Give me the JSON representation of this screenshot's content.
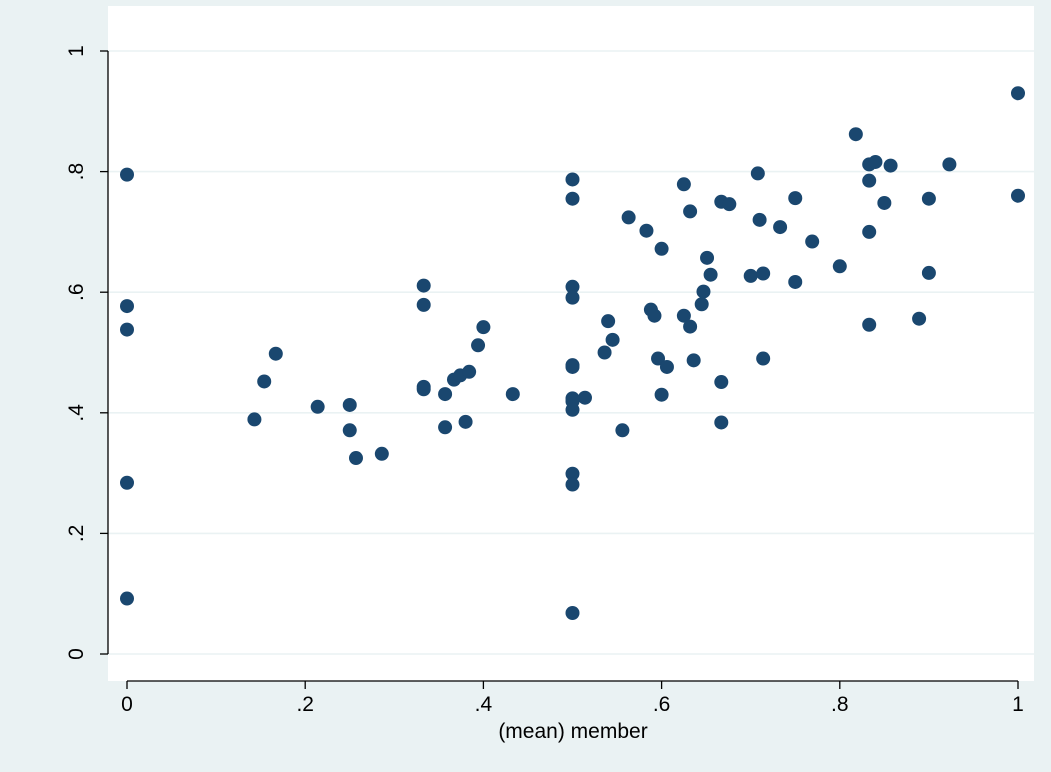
{
  "chart_data": {
    "type": "scatter",
    "title": "",
    "xlabel": "(mean) member",
    "ylabel": "",
    "xlim": [
      0,
      1
    ],
    "ylim": [
      0,
      1
    ],
    "x_ticks": [
      {
        "value": 0,
        "label": "0"
      },
      {
        "value": 0.2,
        "label": ".2"
      },
      {
        "value": 0.4,
        "label": ".4"
      },
      {
        "value": 0.6,
        "label": ".6"
      },
      {
        "value": 0.8,
        "label": ".8"
      },
      {
        "value": 1,
        "label": "1"
      }
    ],
    "y_ticks": [
      {
        "value": 0,
        "label": "0"
      },
      {
        "value": 0.2,
        "label": ".2"
      },
      {
        "value": 0.4,
        "label": ".4"
      },
      {
        "value": 0.6,
        "label": ".6"
      },
      {
        "value": 0.8,
        "label": ".8"
      },
      {
        "value": 1,
        "label": "1"
      }
    ],
    "grid": "horizontal",
    "marker_color": "#1a476f",
    "gridline_color": "#eaf2f3",
    "points": [
      [
        0,
        0.795
      ],
      [
        0,
        0.577
      ],
      [
        0,
        0.538
      ],
      [
        0,
        0.284
      ],
      [
        0,
        0.092
      ],
      [
        0.143,
        0.389
      ],
      [
        0.154,
        0.452
      ],
      [
        0.167,
        0.498
      ],
      [
        0.214,
        0.41
      ],
      [
        0.25,
        0.413
      ],
      [
        0.25,
        0.371
      ],
      [
        0.257,
        0.325
      ],
      [
        0.286,
        0.332
      ],
      [
        0.333,
        0.611
      ],
      [
        0.333,
        0.579
      ],
      [
        0.333,
        0.443
      ],
      [
        0.333,
        0.439
      ],
      [
        0.357,
        0.376
      ],
      [
        0.357,
        0.431
      ],
      [
        0.367,
        0.455
      ],
      [
        0.374,
        0.462
      ],
      [
        0.38,
        0.385
      ],
      [
        0.384,
        0.468
      ],
      [
        0.394,
        0.512
      ],
      [
        0.4,
        0.542
      ],
      [
        0.433,
        0.431
      ],
      [
        0.5,
        0.787
      ],
      [
        0.5,
        0.755
      ],
      [
        0.5,
        0.609
      ],
      [
        0.5,
        0.591
      ],
      [
        0.5,
        0.479
      ],
      [
        0.5,
        0.476
      ],
      [
        0.5,
        0.424
      ],
      [
        0.5,
        0.419
      ],
      [
        0.5,
        0.405
      ],
      [
        0.5,
        0.299
      ],
      [
        0.5,
        0.281
      ],
      [
        0.5,
        0.068
      ],
      [
        0.514,
        0.425
      ],
      [
        0.536,
        0.5
      ],
      [
        0.54,
        0.552
      ],
      [
        0.545,
        0.521
      ],
      [
        0.556,
        0.371
      ],
      [
        0.563,
        0.724
      ],
      [
        0.583,
        0.702
      ],
      [
        0.588,
        0.571
      ],
      [
        0.592,
        0.561
      ],
      [
        0.596,
        0.49
      ],
      [
        0.6,
        0.43
      ],
      [
        0.6,
        0.672
      ],
      [
        0.606,
        0.476
      ],
      [
        0.625,
        0.779
      ],
      [
        0.625,
        0.561
      ],
      [
        0.632,
        0.543
      ],
      [
        0.632,
        0.734
      ],
      [
        0.636,
        0.487
      ],
      [
        0.645,
        0.58
      ],
      [
        0.647,
        0.601
      ],
      [
        0.651,
        0.657
      ],
      [
        0.655,
        0.629
      ],
      [
        0.667,
        0.75
      ],
      [
        0.667,
        0.451
      ],
      [
        0.667,
        0.384
      ],
      [
        0.676,
        0.746
      ],
      [
        0.7,
        0.627
      ],
      [
        0.708,
        0.797
      ],
      [
        0.71,
        0.72
      ],
      [
        0.714,
        0.631
      ],
      [
        0.714,
        0.49
      ],
      [
        0.733,
        0.708
      ],
      [
        0.75,
        0.756
      ],
      [
        0.75,
        0.617
      ],
      [
        0.769,
        0.684
      ],
      [
        0.8,
        0.643
      ],
      [
        0.818,
        0.862
      ],
      [
        0.833,
        0.812
      ],
      [
        0.833,
        0.785
      ],
      [
        0.833,
        0.7
      ],
      [
        0.833,
        0.546
      ],
      [
        0.84,
        0.816
      ],
      [
        0.85,
        0.748
      ],
      [
        0.857,
        0.81
      ],
      [
        0.889,
        0.556
      ],
      [
        0.9,
        0.755
      ],
      [
        0.9,
        0.632
      ],
      [
        0.923,
        0.812
      ],
      [
        1,
        0.93
      ],
      [
        1,
        0.76
      ]
    ]
  }
}
